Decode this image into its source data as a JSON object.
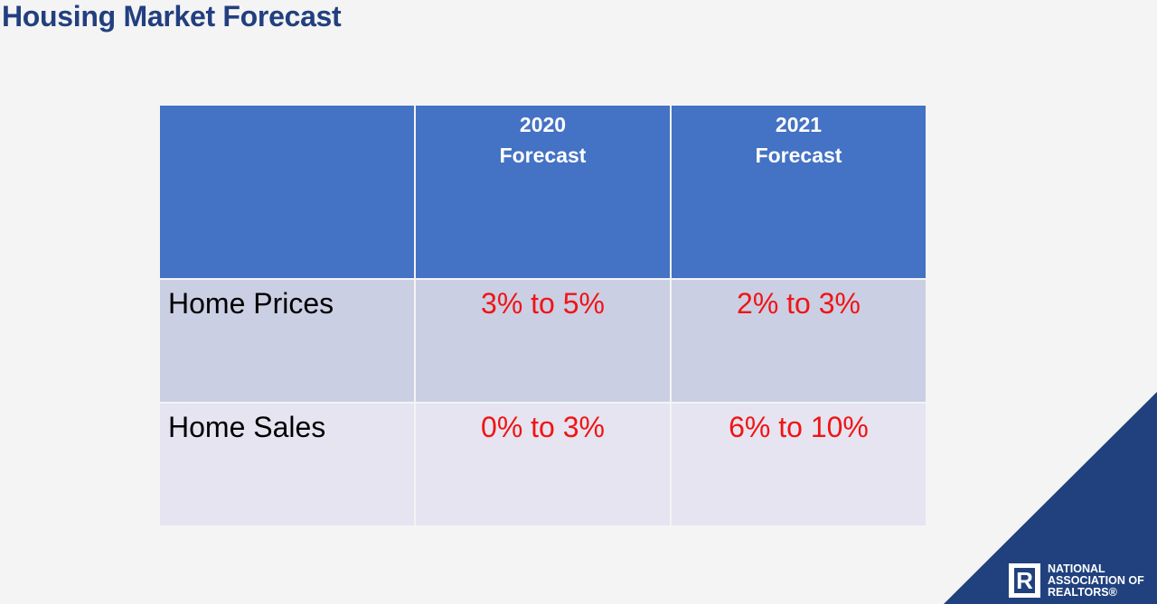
{
  "title": "Housing Market Forecast",
  "table": {
    "headers": [
      "",
      "2020\nForecast",
      "2021\nForecast"
    ],
    "header_lines": [
      [
        "2020",
        "Forecast"
      ],
      [
        "2021",
        "Forecast"
      ]
    ],
    "rows": [
      {
        "label": "Home Prices",
        "values": [
          "3% to 5%",
          "2% to 3%"
        ]
      },
      {
        "label": "Home Sales",
        "values": [
          "0% to 3%",
          "6% to 10%"
        ]
      }
    ]
  },
  "logo": {
    "mark": "R",
    "lines": [
      "NATIONAL",
      "ASSOCIATION OF",
      "REALTORS®"
    ]
  },
  "colors": {
    "header": "#4472c4",
    "value": "#f01414",
    "brand": "#20417e"
  }
}
